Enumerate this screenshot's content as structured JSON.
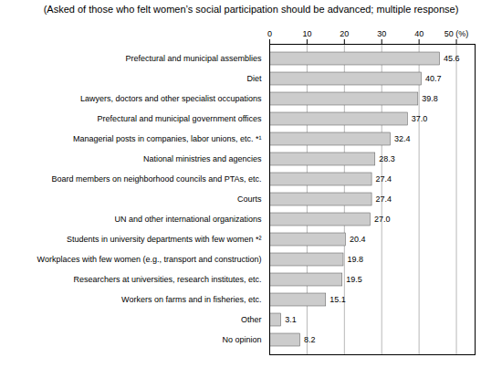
{
  "chart_data": {
    "type": "bar",
    "title": "(Asked of those who felt women’s social participation should be advanced; multiple response)",
    "orientation": "horizontal",
    "categories": [
      "Prefectural and municipal assemblies",
      "Diet",
      "Lawyers, doctors and other specialist occupations",
      "Prefectural and municipal government offices",
      "Managerial posts in companies, labor unions, etc. *¹",
      "National ministries and agencies",
      "Board members on neighborhood councils and PTAs, etc.",
      "Courts",
      "UN and other international organizations",
      "Students in university departments with few women *²",
      "Workplaces with few women (e.g., transport and construction)",
      "Researchers at universities, research institutes, etc.",
      "Workers on farms and in fisheries, etc.",
      "Other",
      "No opinion"
    ],
    "values": [
      45.6,
      40.7,
      39.8,
      37.0,
      32.4,
      28.3,
      27.4,
      27.4,
      27.0,
      20.4,
      19.8,
      19.5,
      15.1,
      3.1,
      8.2
    ],
    "value_labels": [
      "45.6",
      "40.7",
      "39.8",
      "37.0",
      "32.4",
      "28.3",
      "27.4",
      "27.4",
      "27.0",
      "20.4",
      "19.8",
      "19.5",
      "15.1",
      "3.1",
      "8.2"
    ],
    "data_labels": true,
    "color": "#cccccc",
    "xlim": [
      0,
      55
    ],
    "xticks": [
      0,
      10,
      20,
      30,
      40,
      {
        "value": 50,
        "label": "50 (%)"
      }
    ],
    "grid": true
  }
}
